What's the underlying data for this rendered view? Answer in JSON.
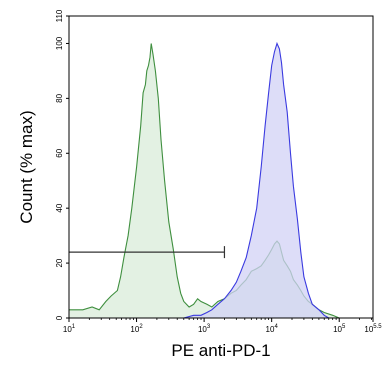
{
  "chart_data": {
    "type": "area",
    "title": "",
    "xlabel": "PE anti-PD-1",
    "ylabel": "Count (% max)",
    "x_scale": "log",
    "xlim": [
      10,
      316228
    ],
    "ylim": [
      0,
      110
    ],
    "grid": false,
    "legend": "none",
    "y_ticks": [
      {
        "value": 0,
        "label": "0"
      },
      {
        "value": 20,
        "label": "20"
      },
      {
        "value": 40,
        "label": "40"
      },
      {
        "value": 60,
        "label": "60"
      },
      {
        "value": 80,
        "label": "80"
      },
      {
        "value": 100,
        "label": "100"
      },
      {
        "value": 110,
        "label": "110"
      }
    ],
    "x_ticks": [
      {
        "value": 10,
        "base": "10",
        "exp": "1"
      },
      {
        "value": 100,
        "base": "10",
        "exp": "2"
      },
      {
        "value": 1000,
        "base": "10",
        "exp": "3"
      },
      {
        "value": 10000,
        "base": "10",
        "exp": "4"
      },
      {
        "value": 100000,
        "base": "10",
        "exp": "5"
      },
      {
        "value": 316228,
        "base": "10",
        "exp": "5.5"
      }
    ],
    "gate": {
      "x_start": 10,
      "x_end": 2000,
      "y": 24
    },
    "series": [
      {
        "color": "#3f8f3f",
        "fill": "#d9ecd9",
        "points": [
          [
            10,
            3
          ],
          [
            16,
            3
          ],
          [
            22,
            4
          ],
          [
            28,
            3
          ],
          [
            35,
            6
          ],
          [
            42,
            8
          ],
          [
            52,
            10
          ],
          [
            58,
            15
          ],
          [
            65,
            22
          ],
          [
            75,
            30
          ],
          [
            85,
            40
          ],
          [
            100,
            55
          ],
          [
            115,
            70
          ],
          [
            125,
            82
          ],
          [
            135,
            85
          ],
          [
            142,
            90
          ],
          [
            150,
            92
          ],
          [
            158,
            95
          ],
          [
            165,
            100
          ],
          [
            175,
            96
          ],
          [
            190,
            90
          ],
          [
            210,
            80
          ],
          [
            230,
            65
          ],
          [
            260,
            50
          ],
          [
            300,
            35
          ],
          [
            350,
            25
          ],
          [
            400,
            15
          ],
          [
            450,
            9
          ],
          [
            500,
            6
          ],
          [
            600,
            4
          ],
          [
            700,
            5
          ],
          [
            800,
            7
          ],
          [
            900,
            6
          ],
          [
            1100,
            5
          ],
          [
            1300,
            4
          ],
          [
            1600,
            6
          ],
          [
            2000,
            7
          ],
          [
            2500,
            9
          ],
          [
            3000,
            10
          ],
          [
            3500,
            12
          ],
          [
            4200,
            14
          ],
          [
            5000,
            17
          ],
          [
            6000,
            18
          ],
          [
            7000,
            19
          ],
          [
            8000,
            21
          ],
          [
            9000,
            23
          ],
          [
            10000,
            25
          ],
          [
            11000,
            27
          ],
          [
            12000,
            28
          ],
          [
            13000,
            27
          ],
          [
            14000,
            24
          ],
          [
            15000,
            21
          ],
          [
            17000,
            19
          ],
          [
            19000,
            17
          ],
          [
            21000,
            14
          ],
          [
            24000,
            12
          ],
          [
            27000,
            10
          ],
          [
            30000,
            8
          ],
          [
            35000,
            6
          ],
          [
            40000,
            5
          ],
          [
            50000,
            3
          ],
          [
            60000,
            2
          ],
          [
            80000,
            1
          ],
          [
            100000,
            0
          ]
        ]
      },
      {
        "color": "#3a3ae0",
        "fill": "#d2d2f5",
        "points": [
          [
            500,
            0
          ],
          [
            700,
            1
          ],
          [
            900,
            1
          ],
          [
            1100,
            2
          ],
          [
            1300,
            3
          ],
          [
            1600,
            5
          ],
          [
            2000,
            7
          ],
          [
            2500,
            10
          ],
          [
            3000,
            13
          ],
          [
            3500,
            17
          ],
          [
            4200,
            22
          ],
          [
            5000,
            30
          ],
          [
            6000,
            40
          ],
          [
            7000,
            55
          ],
          [
            8000,
            70
          ],
          [
            9000,
            82
          ],
          [
            10000,
            92
          ],
          [
            11000,
            97
          ],
          [
            12000,
            100
          ],
          [
            13000,
            98
          ],
          [
            14000,
            93
          ],
          [
            15000,
            85
          ],
          [
            17000,
            75
          ],
          [
            19000,
            60
          ],
          [
            21000,
            48
          ],
          [
            24000,
            36
          ],
          [
            27000,
            24
          ],
          [
            30000,
            15
          ],
          [
            35000,
            9
          ],
          [
            40000,
            5
          ],
          [
            50000,
            3
          ],
          [
            60000,
            1
          ],
          [
            70000,
            0
          ]
        ]
      }
    ]
  }
}
